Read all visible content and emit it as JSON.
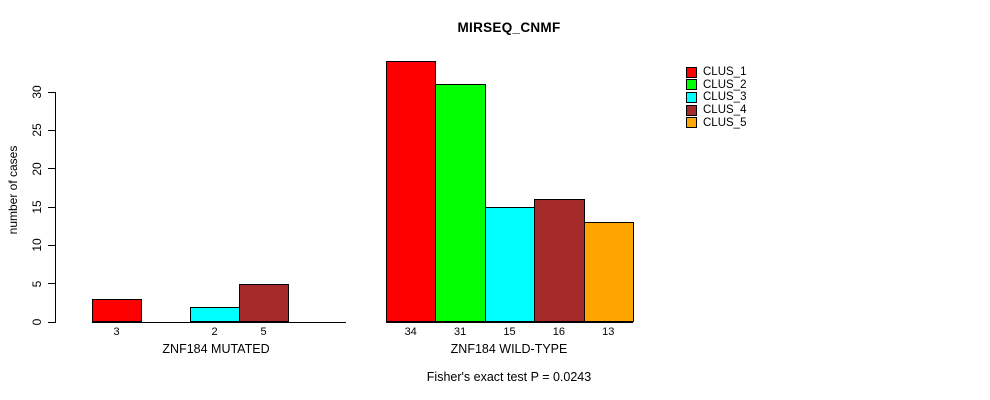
{
  "chart_data": {
    "type": "bar",
    "title": "MIRSEQ_CNMF",
    "ylabel": "number of cases",
    "yticks": [
      0,
      5,
      10,
      15,
      20,
      25,
      30
    ],
    "ylim": [
      0,
      34
    ],
    "grid": false,
    "legend_position": "top-right",
    "legend": [
      {
        "label": "CLUS_1",
        "color": "#ff0000"
      },
      {
        "label": "CLUS_2",
        "color": "#00ff00"
      },
      {
        "label": "CLUS_3",
        "color": "#00ffff"
      },
      {
        "label": "CLUS_4",
        "color": "#a52a2a"
      },
      {
        "label": "CLUS_5",
        "color": "#ffa500"
      }
    ],
    "groups": [
      {
        "label": "ZNF184 MUTATED",
        "values": [
          3,
          0,
          2,
          5,
          0
        ],
        "bar_labels": [
          "3",
          "",
          "2",
          "5",
          ""
        ]
      },
      {
        "label": "ZNF184 WILD-TYPE",
        "values": [
          34,
          31,
          15,
          16,
          13
        ],
        "bar_labels": [
          "34",
          "31",
          "15",
          "16",
          "13"
        ]
      }
    ],
    "footnote": "Fisher's exact test P = 0.0243"
  }
}
